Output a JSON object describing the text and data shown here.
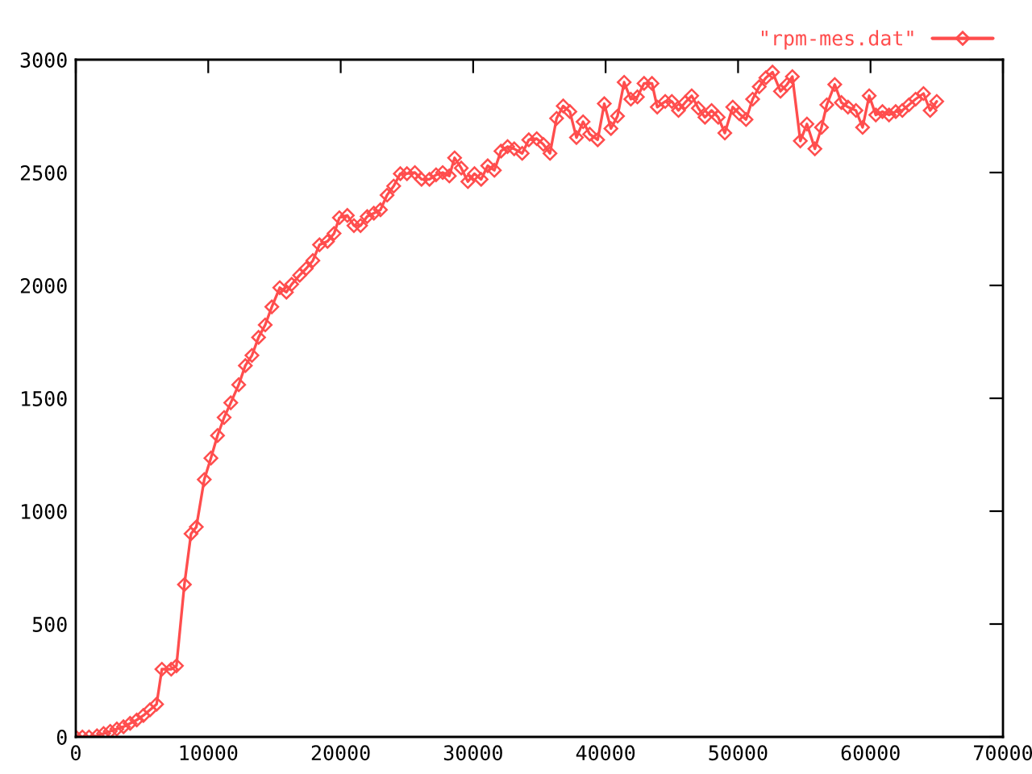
{
  "chart_data": {
    "type": "line",
    "x": [
      0,
      500,
      1000,
      1600,
      2100,
      2600,
      3100,
      3600,
      4100,
      4600,
      5100,
      5600,
      6100,
      6500,
      7200,
      7600,
      8200,
      8700,
      9100,
      9700,
      10200,
      10700,
      11200,
      11700,
      12300,
      12800,
      13300,
      13800,
      14300,
      14800,
      15400,
      15900,
      16300,
      16900,
      17400,
      17900,
      18400,
      19000,
      19500,
      19900,
      20500,
      21000,
      21500,
      22000,
      22500,
      23000,
      23500,
      24000,
      24500,
      25000,
      25600,
      26100,
      26700,
      27200,
      27700,
      28200,
      28600,
      29100,
      29600,
      30100,
      30600,
      31100,
      31600,
      32100,
      32600,
      33100,
      33700,
      34200,
      34800,
      35300,
      35800,
      36300,
      36800,
      37300,
      37800,
      38300,
      38800,
      39400,
      39900,
      40400,
      40900,
      41400,
      41900,
      42400,
      42900,
      43500,
      43900,
      44500,
      45000,
      45500,
      46000,
      46500,
      47000,
      47500,
      48000,
      48500,
      49000,
      49600,
      50100,
      50600,
      51100,
      51600,
      52100,
      52600,
      53200,
      53700,
      54100,
      54700,
      55200,
      55800,
      56300,
      56700,
      57300,
      57800,
      58300,
      58900,
      59400,
      59900,
      60400,
      60900,
      61400,
      61900,
      62400,
      62900,
      63400,
      64000,
      64500,
      65000
    ],
    "series": [
      {
        "name": "\"rpm-mes.dat\"",
        "color": "#ff4d4d",
        "values": [
          0,
          0,
          0,
          5,
          15,
          25,
          35,
          45,
          60,
          75,
          95,
          120,
          145,
          300,
          300,
          315,
          675,
          900,
          930,
          1140,
          1235,
          1335,
          1415,
          1480,
          1560,
          1645,
          1690,
          1770,
          1825,
          1905,
          1990,
          1970,
          2005,
          2045,
          2075,
          2110,
          2180,
          2195,
          2230,
          2300,
          2310,
          2265,
          2265,
          2305,
          2320,
          2335,
          2400,
          2440,
          2495,
          2495,
          2500,
          2470,
          2470,
          2490,
          2500,
          2485,
          2565,
          2520,
          2460,
          2495,
          2470,
          2530,
          2510,
          2595,
          2615,
          2605,
          2585,
          2645,
          2650,
          2625,
          2585,
          2740,
          2795,
          2770,
          2655,
          2725,
          2670,
          2645,
          2805,
          2695,
          2750,
          2900,
          2825,
          2835,
          2895,
          2895,
          2790,
          2815,
          2815,
          2775,
          2810,
          2840,
          2785,
          2745,
          2775,
          2745,
          2675,
          2790,
          2760,
          2735,
          2825,
          2880,
          2920,
          2945,
          2860,
          2890,
          2925,
          2640,
          2715,
          2605,
          2700,
          2800,
          2890,
          2810,
          2790,
          2775,
          2700,
          2840,
          2755,
          2770,
          2755,
          2770,
          2775,
          2800,
          2825,
          2850,
          2775,
          2815
        ]
      }
    ],
    "xlim": [
      0,
      70000
    ],
    "ylim": [
      0,
      3000
    ],
    "xticks": [
      0,
      10000,
      20000,
      30000,
      40000,
      50000,
      60000,
      70000
    ],
    "yticks": [
      0,
      500,
      1000,
      1500,
      2000,
      2500,
      3000
    ],
    "grid": false,
    "legend": "top right",
    "marker": "diamond",
    "line_style": "solid"
  }
}
